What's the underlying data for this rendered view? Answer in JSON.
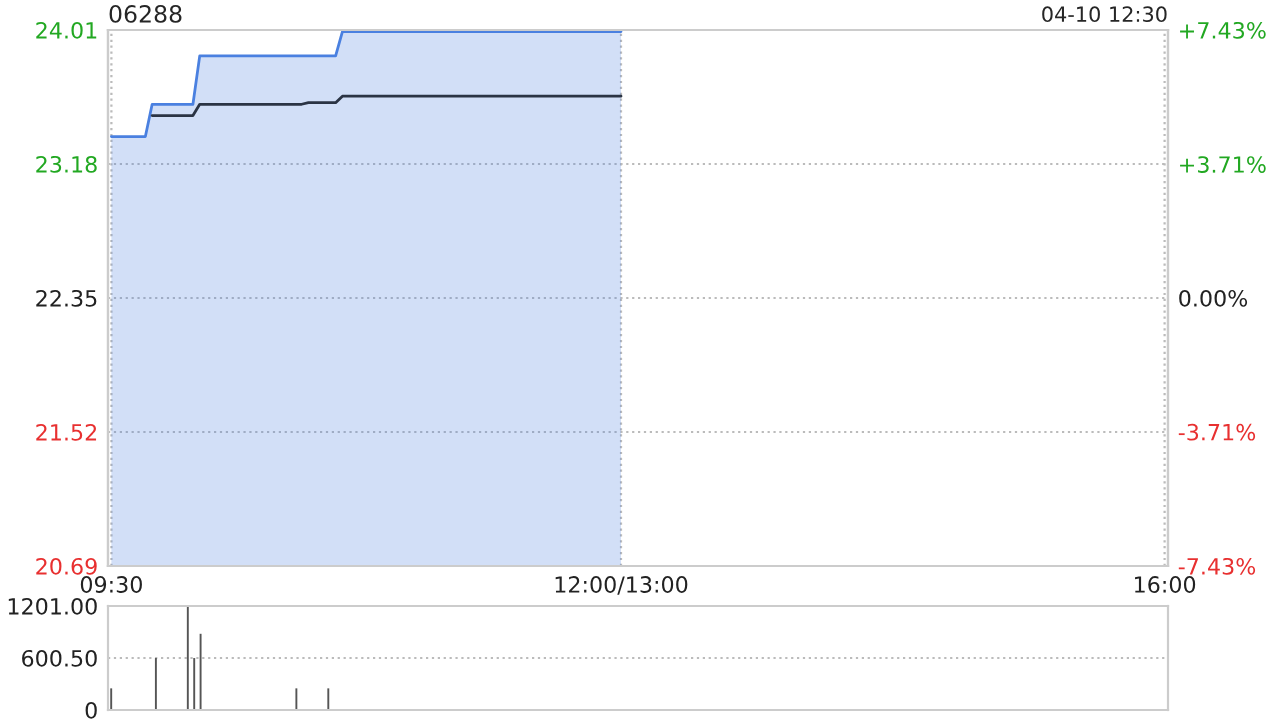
{
  "chart_data": [
    {
      "type": "line",
      "title": "06288",
      "annotations": [
        "04-10 12:30"
      ],
      "categories": [
        "09:30",
        null,
        null,
        null,
        null,
        null,
        null,
        null,
        null,
        null,
        null,
        null,
        null,
        null,
        null,
        null,
        null,
        null,
        null,
        null,
        null,
        null,
        null,
        null,
        null,
        null,
        null,
        null,
        null,
        null,
        null,
        null,
        null,
        null,
        null,
        null,
        null,
        null,
        null,
        null,
        null,
        null,
        null,
        null,
        null,
        null,
        null,
        null,
        null,
        null,
        null,
        null,
        null,
        null,
        null,
        null,
        null,
        null,
        null,
        null,
        null,
        null,
        null,
        null,
        null,
        null,
        null,
        null,
        null,
        null,
        null,
        null,
        null,
        null,
        null,
        "12:00/13:00",
        null,
        null,
        null,
        null,
        null,
        null,
        null,
        null,
        null,
        null,
        null,
        null,
        null,
        null,
        null,
        null,
        null,
        null,
        null,
        null,
        null,
        null,
        null,
        null,
        null,
        null,
        null,
        null,
        null,
        null,
        null,
        null,
        null,
        null,
        null,
        null,
        null,
        null,
        null,
        null,
        null,
        null,
        null,
        null,
        null,
        null,
        null,
        null,
        null,
        null,
        null,
        null,
        null,
        null,
        null,
        null,
        null,
        null,
        null,
        null,
        null,
        null,
        null,
        null,
        null,
        null,
        null,
        null,
        null,
        null,
        null,
        null,
        null,
        null,
        null,
        null,
        null,
        null,
        null,
        "16:00"
      ],
      "ylim": [
        20.69,
        24.01
      ],
      "yticks": [
        20.69,
        21.52,
        22.35,
        23.18,
        24.01
      ],
      "y2lim": [
        -7.43,
        7.43
      ],
      "y2ticks": [
        {
          "value": -7.43,
          "label": "-7.43%"
        },
        {
          "value": -3.71,
          "label": "-3.71%"
        },
        {
          "value": 0,
          "label": "0.00%"
        },
        {
          "value": 3.71,
          "label": "+3.71%"
        },
        {
          "value": 7.43,
          "label": "+7.43%"
        }
      ],
      "grid": true,
      "series": [
        {
          "type": "area",
          "color": "#4a80e0",
          "values": [
            23.35,
            23.35,
            23.35,
            23.35,
            23.35,
            23.35,
            23.55,
            23.55,
            23.55,
            23.55,
            23.55,
            23.55,
            23.55,
            23.85,
            23.85,
            23.85,
            23.85,
            23.85,
            23.85,
            23.85,
            23.85,
            23.85,
            23.85,
            23.85,
            23.85,
            23.85,
            23.85,
            23.85,
            23.85,
            23.85,
            23.85,
            23.85,
            23.85,
            23.85,
            24.0,
            24.0,
            24.0,
            24.0,
            24.0,
            24.0,
            24.0,
            24.0,
            24.0,
            24.0,
            24.0,
            24.0,
            24.0,
            24.0,
            24.0,
            24.0,
            24.0,
            24.0,
            24.0,
            24.0,
            24.0,
            24.0,
            24.0,
            24.0,
            24.0,
            24.0,
            24.0,
            24.0,
            24.0,
            24.0,
            24.0,
            24.0,
            24.0,
            24.0,
            24.0,
            24.0,
            24.0,
            24.0,
            24.0,
            24.0,
            24.0,
            24.0,
            null,
            null,
            null,
            null,
            null,
            null,
            null,
            null,
            null,
            null,
            null,
            null,
            null,
            null,
            null,
            null,
            null,
            null,
            null,
            null,
            null,
            null,
            null,
            null,
            null,
            null,
            null,
            null,
            null,
            null,
            null,
            null,
            null,
            null,
            null,
            null,
            null,
            null,
            null,
            null,
            null,
            null,
            null,
            null,
            null,
            null,
            null,
            null,
            null,
            null,
            null,
            null,
            null,
            null,
            null,
            null,
            null,
            null,
            null,
            null,
            null,
            null,
            null,
            null,
            null,
            null,
            null,
            null,
            null,
            null,
            null,
            null,
            null,
            null,
            null,
            null,
            null,
            null,
            null,
            null
          ]
        },
        {
          "type": "line",
          "color": "#2b3444",
          "values": [
            null,
            null,
            null,
            null,
            null,
            null,
            23.48,
            23.48,
            23.48,
            23.48,
            23.48,
            23.48,
            23.48,
            23.55,
            23.55,
            23.55,
            23.55,
            23.55,
            23.55,
            23.55,
            23.55,
            23.55,
            23.55,
            23.55,
            23.55,
            23.55,
            23.55,
            23.55,
            23.55,
            23.56,
            23.56,
            23.56,
            23.56,
            23.56,
            23.6,
            23.6,
            23.6,
            23.6,
            23.6,
            23.6,
            23.6,
            23.6,
            23.6,
            23.6,
            23.6,
            23.6,
            23.6,
            23.6,
            23.6,
            23.6,
            23.6,
            23.6,
            23.6,
            23.6,
            23.6,
            23.6,
            23.6,
            23.6,
            23.6,
            23.6,
            23.6,
            23.6,
            23.6,
            23.6,
            23.6,
            23.6,
            23.6,
            23.6,
            23.6,
            23.6,
            23.6,
            23.6,
            23.6,
            23.6,
            23.6,
            23.6,
            null,
            null,
            null,
            null,
            null,
            null,
            null,
            null,
            null,
            null,
            null,
            null,
            null,
            null,
            null,
            null,
            null,
            null,
            null,
            null,
            null,
            null,
            null,
            null,
            null,
            null,
            null,
            null,
            null,
            null,
            null,
            null,
            null,
            null,
            null,
            null,
            null,
            null,
            null,
            null,
            null,
            null,
            null,
            null,
            null,
            null,
            null,
            null,
            null,
            null,
            null,
            null,
            null,
            null,
            null,
            null,
            null,
            null,
            null,
            null,
            null,
            null,
            null,
            null,
            null,
            null,
            null,
            null,
            null,
            null,
            null,
            null,
            null,
            null,
            null,
            null,
            null,
            null,
            null,
            null
          ]
        }
      ]
    },
    {
      "type": "bar",
      "color": "#555555",
      "tick_labels": "y",
      "grid": "y",
      "categories": [
        null,
        null,
        null,
        null,
        null,
        null,
        null,
        null,
        null,
        null,
        null,
        null,
        null,
        null,
        null,
        null,
        null,
        null,
        null,
        null,
        null,
        null,
        null,
        null,
        null,
        null,
        null,
        null,
        null,
        null,
        null,
        null,
        null,
        null,
        null,
        null,
        null,
        null,
        null,
        null,
        null,
        null,
        null,
        null,
        null,
        null,
        null,
        null,
        null,
        null,
        null,
        null,
        null,
        null,
        null,
        null,
        null,
        null,
        null,
        null,
        null,
        null,
        null,
        null,
        null,
        null,
        null,
        null,
        null,
        null,
        null,
        null,
        null,
        null,
        null,
        null,
        null,
        null,
        null,
        null,
        null,
        null,
        null,
        null,
        null,
        null,
        null,
        null,
        null,
        null,
        null,
        null,
        null,
        null,
        null,
        null,
        null,
        null,
        null,
        null,
        null,
        null,
        null,
        null,
        null,
        null,
        null,
        null,
        null,
        null,
        null,
        null,
        null,
        null,
        null,
        null,
        null,
        null,
        null,
        null,
        null,
        null,
        null,
        null,
        null,
        null,
        null,
        null,
        null,
        null,
        null,
        null,
        null,
        null,
        null,
        null,
        null,
        null,
        null,
        null,
        null,
        null,
        null,
        null,
        null,
        null,
        null,
        null,
        null,
        null,
        null,
        null,
        null,
        null,
        null,
        null,
        null,
        null,
        null,
        null,
        null,
        null,
        null,
        null,
        null,
        null
      ],
      "ylim": [
        0,
        1201
      ],
      "yticks": [
        0,
        {
          "value": 600.5,
          "label": "600.50"
        },
        {
          "value": 1201,
          "label": "1201.00"
        }
      ],
      "values": [
        250,
        null,
        null,
        null,
        null,
        null,
        null,
        600,
        null,
        null,
        null,
        null,
        1200,
        600,
        880,
        null,
        null,
        null,
        null,
        null,
        null,
        null,
        null,
        null,
        null,
        null,
        null,
        null,
        null,
        250,
        null,
        null,
        null,
        null,
        250,
        null,
        null,
        null,
        null,
        null,
        null,
        null,
        null,
        null,
        null,
        null,
        null,
        null,
        null,
        null,
        null,
        null,
        null,
        null,
        null,
        null,
        null,
        null,
        null,
        null,
        null,
        null,
        null,
        null,
        null,
        null,
        null,
        null,
        null,
        null,
        null,
        null,
        null,
        null,
        null,
        null,
        null,
        null,
        null,
        null,
        null,
        null,
        null,
        null,
        null,
        null,
        null,
        null,
        null,
        null,
        null,
        null,
        null,
        null,
        null,
        null,
        null,
        null,
        null,
        null,
        null,
        null,
        null,
        null,
        null,
        null,
        null,
        null,
        null,
        null,
        null,
        null,
        null,
        null,
        null,
        null,
        null,
        null,
        null,
        null,
        null,
        null,
        null,
        null,
        null,
        null,
        null,
        null,
        null,
        null,
        null,
        null,
        null,
        null,
        null,
        null,
        null,
        null,
        null,
        null,
        null,
        null,
        null,
        null,
        null,
        null,
        null,
        null,
        null,
        null,
        null,
        null,
        null,
        null,
        null,
        null,
        null,
        null,
        null,
        null,
        null,
        null,
        null,
        null,
        null,
        null
      ]
    }
  ]
}
